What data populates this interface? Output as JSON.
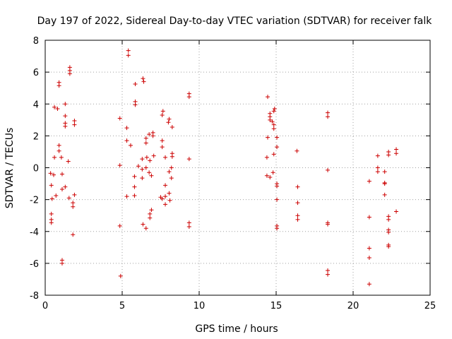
{
  "chart_data": {
    "type": "scatter",
    "title": "Day 197 of 2022, Sidereal Day-to-day VTEC variation (SDTVAR) for receiver falk",
    "xlabel": "GPS time / hours",
    "ylabel": "SDTVAR / TECUs",
    "xlim": [
      0,
      25
    ],
    "ylim": [
      -8,
      8
    ],
    "xticks": [
      0,
      5,
      10,
      15,
      20,
      25
    ],
    "yticks": [
      -8,
      -6,
      -4,
      -2,
      0,
      2,
      4,
      6,
      8
    ],
    "grid": true,
    "marker": "+",
    "color": "#cc0000",
    "series": [
      {
        "name": "SDTVAR",
        "points": [
          [
            0.35,
            -0.35
          ],
          [
            0.4,
            -1.1
          ],
          [
            0.45,
            -1.95
          ],
          [
            0.4,
            -2.9
          ],
          [
            0.4,
            -3.25
          ],
          [
            0.4,
            -3.45
          ],
          [
            0.55,
            -0.45
          ],
          [
            0.6,
            0.65
          ],
          [
            0.6,
            3.8
          ],
          [
            0.7,
            -1.75
          ],
          [
            0.8,
            3.7
          ],
          [
            0.9,
            1.05
          ],
          [
            0.9,
            1.4
          ],
          [
            0.9,
            5.15
          ],
          [
            0.9,
            5.35
          ],
          [
            1.05,
            0.65
          ],
          [
            1.1,
            -0.4
          ],
          [
            1.1,
            -1.35
          ],
          [
            1.1,
            -5.8
          ],
          [
            1.1,
            -6.0
          ],
          [
            1.3,
            -1.2
          ],
          [
            1.3,
            2.6
          ],
          [
            1.3,
            2.8
          ],
          [
            1.3,
            3.25
          ],
          [
            1.3,
            4.0
          ],
          [
            1.5,
            0.4
          ],
          [
            1.55,
            -1.9
          ],
          [
            1.6,
            5.9
          ],
          [
            1.6,
            6.1
          ],
          [
            1.6,
            6.3
          ],
          [
            1.8,
            -2.2
          ],
          [
            1.8,
            -2.45
          ],
          [
            1.9,
            -1.7
          ],
          [
            1.8,
            -4.2
          ],
          [
            1.9,
            2.7
          ],
          [
            1.9,
            2.95
          ],
          [
            4.85,
            3.1
          ],
          [
            4.85,
            0.15
          ],
          [
            4.85,
            -3.65
          ],
          [
            4.9,
            -6.8
          ],
          [
            5.3,
            -1.8
          ],
          [
            5.3,
            2.5
          ],
          [
            5.3,
            1.7
          ],
          [
            5.4,
            7.35
          ],
          [
            5.4,
            7.05
          ],
          [
            5.55,
            1.4
          ],
          [
            5.8,
            -1.2
          ],
          [
            5.8,
            -1.75
          ],
          [
            5.8,
            -0.55
          ],
          [
            5.85,
            3.95
          ],
          [
            5.85,
            4.15
          ],
          [
            5.85,
            5.25
          ],
          [
            6.05,
            0.1
          ],
          [
            6.3,
            0.55
          ],
          [
            6.3,
            -0.1
          ],
          [
            6.3,
            -0.65
          ],
          [
            6.35,
            -3.55
          ],
          [
            6.35,
            5.6
          ],
          [
            6.4,
            5.4
          ],
          [
            6.55,
            -3.8
          ],
          [
            6.55,
            0.0
          ],
          [
            6.55,
            1.55
          ],
          [
            6.55,
            1.85
          ],
          [
            6.6,
            0.65
          ],
          [
            6.75,
            -0.3
          ],
          [
            6.75,
            2.1
          ],
          [
            6.8,
            -2.9
          ],
          [
            6.8,
            -3.15
          ],
          [
            6.8,
            0.45
          ],
          [
            6.9,
            -2.65
          ],
          [
            6.9,
            -0.5
          ],
          [
            7.0,
            2.0
          ],
          [
            7.0,
            2.2
          ],
          [
            7.05,
            0.75
          ],
          [
            7.5,
            -1.85
          ],
          [
            7.6,
            -1.95
          ],
          [
            7.6,
            1.3
          ],
          [
            7.6,
            1.7
          ],
          [
            7.6,
            3.3
          ],
          [
            7.65,
            3.55
          ],
          [
            7.8,
            -1.1
          ],
          [
            7.8,
            -1.8
          ],
          [
            7.8,
            -2.3
          ],
          [
            7.8,
            0.65
          ],
          [
            8.0,
            2.85
          ],
          [
            8.05,
            3.05
          ],
          [
            8.05,
            -0.25
          ],
          [
            8.05,
            -1.6
          ],
          [
            8.1,
            -2.05
          ],
          [
            8.2,
            0.0
          ],
          [
            8.2,
            -0.65
          ],
          [
            8.25,
            0.7
          ],
          [
            8.25,
            0.9
          ],
          [
            8.25,
            2.55
          ],
          [
            9.35,
            0.55
          ],
          [
            9.35,
            4.45
          ],
          [
            9.35,
            4.65
          ],
          [
            9.35,
            -3.45
          ],
          [
            9.35,
            -3.7
          ],
          [
            14.4,
            -0.5
          ],
          [
            14.4,
            0.65
          ],
          [
            14.45,
            1.9
          ],
          [
            14.45,
            4.45
          ],
          [
            14.6,
            -0.6
          ],
          [
            14.6,
            3.0
          ],
          [
            14.6,
            3.2
          ],
          [
            14.6,
            3.4
          ],
          [
            14.75,
            2.9
          ],
          [
            14.8,
            -0.3
          ],
          [
            14.85,
            0.85
          ],
          [
            14.85,
            2.45
          ],
          [
            14.85,
            2.7
          ],
          [
            14.85,
            3.55
          ],
          [
            14.9,
            3.7
          ],
          [
            15.05,
            -1.0
          ],
          [
            15.05,
            -1.15
          ],
          [
            15.05,
            1.3
          ],
          [
            15.05,
            1.9
          ],
          [
            15.05,
            -2.0
          ],
          [
            15.05,
            -3.65
          ],
          [
            15.05,
            -3.8
          ],
          [
            16.35,
            1.05
          ],
          [
            16.4,
            -1.2
          ],
          [
            16.4,
            -2.2
          ],
          [
            16.4,
            -3.0
          ],
          [
            16.4,
            -3.25
          ],
          [
            18.35,
            3.2
          ],
          [
            18.35,
            3.45
          ],
          [
            18.35,
            -0.15
          ],
          [
            18.35,
            -3.45
          ],
          [
            18.35,
            -3.55
          ],
          [
            18.35,
            -6.45
          ],
          [
            18.35,
            -6.7
          ],
          [
            21.05,
            -0.85
          ],
          [
            21.05,
            -3.1
          ],
          [
            21.05,
            -5.05
          ],
          [
            21.05,
            -5.65
          ],
          [
            21.05,
            -7.3
          ],
          [
            21.6,
            0.75
          ],
          [
            21.6,
            0.0
          ],
          [
            21.6,
            -0.25
          ],
          [
            22.05,
            -0.25
          ],
          [
            22.05,
            -0.95
          ],
          [
            22.05,
            -1.0
          ],
          [
            22.05,
            -1.7
          ],
          [
            22.3,
            1.0
          ],
          [
            22.3,
            0.8
          ],
          [
            22.3,
            -3.05
          ],
          [
            22.3,
            -3.25
          ],
          [
            22.3,
            -3.9
          ],
          [
            22.3,
            -4.05
          ],
          [
            22.3,
            -4.85
          ],
          [
            22.3,
            -4.95
          ],
          [
            22.8,
            1.15
          ],
          [
            22.8,
            0.9
          ],
          [
            22.8,
            -2.75
          ]
        ]
      }
    ]
  }
}
